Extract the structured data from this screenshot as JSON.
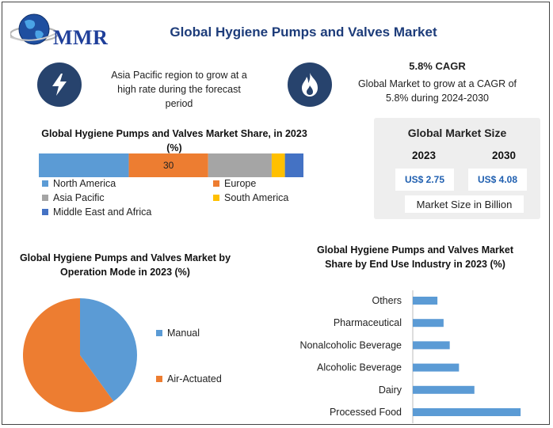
{
  "header": {
    "logo_text": "MMR",
    "title": "Global Hygiene Pumps and Valves Market"
  },
  "highlights": {
    "asia": {
      "icon": "lightning-icon",
      "text": "Asia Pacific region to grow at a high rate during the forecast period"
    },
    "cagr": {
      "icon": "flame-icon",
      "title": "5.8% CAGR",
      "text": "Global Market to grow at a CAGR of 5.8% during 2024-2030"
    }
  },
  "market_size": {
    "title": "Global Market Size",
    "year_a": "2023",
    "year_b": "2030",
    "value_a": "US$ 2.75",
    "value_b": "US$ 4.08",
    "unit_label": "Market Size in Billion"
  },
  "colors": {
    "blue": "#5b9bd5",
    "orange": "#ed7d31",
    "gray": "#a5a5a5",
    "yellow": "#ffc000",
    "dark_blue": "#4472c4",
    "icon_bg": "#27436d"
  },
  "chart_data": [
    {
      "type": "bar",
      "orientation": "stacked-horizontal",
      "title": "Global Hygiene Pumps and Valves Market Share, in 2023 (%)",
      "categories": [
        "North America",
        "Europe",
        "Asia Pacific",
        "South America",
        "Middle East and Africa"
      ],
      "values": [
        34,
        30,
        24,
        5,
        7
      ],
      "data_labels": [
        null,
        "30",
        null,
        null,
        null
      ],
      "legend_position": "bottom"
    },
    {
      "type": "pie",
      "title": "Global Hygiene Pumps and Valves Market by Operation Mode in 2023 (%)",
      "categories": [
        "Manual",
        "Air-Actuated"
      ],
      "values": [
        40,
        60
      ],
      "legend_position": "right"
    },
    {
      "type": "bar",
      "orientation": "horizontal",
      "title": "Global Hygiene Pumps and Valves Market Share by End Use Industry in 2023 (%)",
      "categories": [
        "Others",
        "Pharmaceutical",
        "Nonalcoholic Beverage",
        "Alcoholic Beverage",
        "Dairy",
        "Processed Food"
      ],
      "values": [
        8,
        10,
        12,
        15,
        20,
        35
      ],
      "xlim": [
        0,
        36
      ]
    }
  ]
}
